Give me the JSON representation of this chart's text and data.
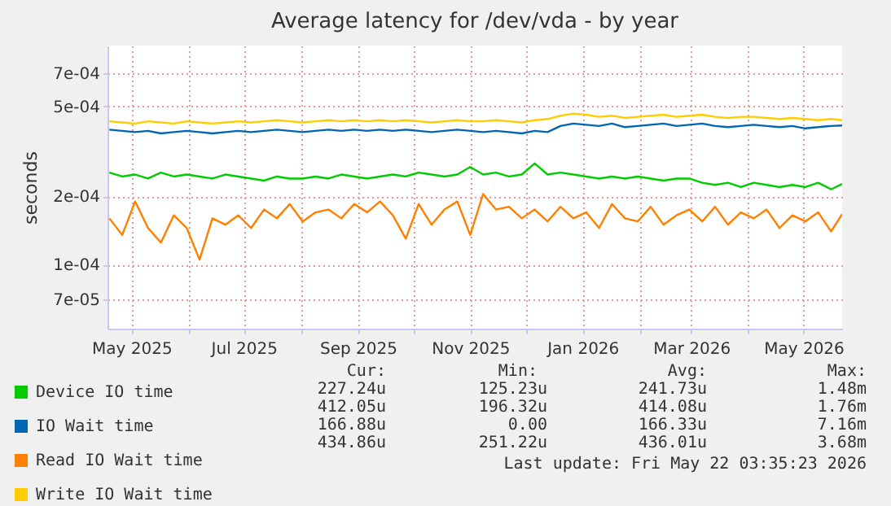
{
  "chart_data": {
    "type": "line",
    "title": "Average latency for /dev/vda - by year",
    "ylabel": "seconds",
    "log": "y",
    "grid": true,
    "legend": "bottom left",
    "marker": "none",
    "x": [
      "2025-04-19",
      "2025-04-26",
      "2025-05-03",
      "2025-05-10",
      "2025-05-17",
      "2025-05-24",
      "2025-05-31",
      "2025-06-07",
      "2025-06-14",
      "2025-06-21",
      "2025-06-28",
      "2025-07-05",
      "2025-07-12",
      "2025-07-19",
      "2025-07-26",
      "2025-08-02",
      "2025-08-09",
      "2025-08-16",
      "2025-08-23",
      "2025-08-30",
      "2025-09-06",
      "2025-09-13",
      "2025-09-20",
      "2025-09-27",
      "2025-10-04",
      "2025-10-11",
      "2025-10-18",
      "2025-10-25",
      "2025-11-01",
      "2025-11-08",
      "2025-11-15",
      "2025-11-22",
      "2025-11-29",
      "2025-12-06",
      "2025-12-13",
      "2025-12-20",
      "2025-12-27",
      "2026-01-03",
      "2026-01-10",
      "2026-01-17",
      "2026-01-24",
      "2026-01-31",
      "2026-02-07",
      "2026-02-14",
      "2026-02-21",
      "2026-02-28",
      "2026-03-07",
      "2026-03-14",
      "2026-03-21",
      "2026-03-28",
      "2026-04-04",
      "2026-04-11",
      "2026-04-18",
      "2026-04-25",
      "2026-05-02",
      "2026-05-09",
      "2026-05-16",
      "2026-05-22"
    ],
    "xlim": [
      "2025-04-18",
      "2026-05-22"
    ],
    "xticks": [
      {
        "value": "2025-05-01",
        "label": "May 2025"
      },
      {
        "value": "2025-06-01",
        "label": null
      },
      {
        "value": "2025-07-01",
        "label": "Jul 2025"
      },
      {
        "value": "2025-08-01",
        "label": null
      },
      {
        "value": "2025-09-01",
        "label": "Sep 2025"
      },
      {
        "value": "2025-10-01",
        "label": null
      },
      {
        "value": "2025-11-01",
        "label": "Nov 2025"
      },
      {
        "value": "2025-12-01",
        "label": null
      },
      {
        "value": "2026-01-01",
        "label": "Jan 2026"
      },
      {
        "value": "2026-02-01",
        "label": null
      },
      {
        "value": "2026-03-01",
        "label": "Mar 2026"
      },
      {
        "value": "2026-04-01",
        "label": null
      },
      {
        "value": "2026-05-01",
        "label": "May 2026"
      }
    ],
    "ylim": [
      5.2e-05,
      0.00093
    ],
    "yticks": [
      {
        "value": 7e-05,
        "label": "7e-05"
      },
      {
        "value": 0.0001,
        "label": "1e-04"
      },
      {
        "value": 0.0002,
        "label": "2e-04"
      },
      {
        "value": 0.0005,
        "label": "5e-04"
      },
      {
        "value": 0.0007,
        "label": "7e-04"
      }
    ],
    "series": [
      {
        "name": "Device IO time",
        "color": "#00cc00",
        "values": [
          0.000255,
          0.000245,
          0.00025,
          0.00024,
          0.000255,
          0.000245,
          0.00025,
          0.000245,
          0.00024,
          0.00025,
          0.000245,
          0.00024,
          0.000235,
          0.000245,
          0.00024,
          0.00024,
          0.000245,
          0.00024,
          0.00025,
          0.000245,
          0.00024,
          0.000245,
          0.00025,
          0.000245,
          0.000255,
          0.00025,
          0.000245,
          0.00025,
          0.00027,
          0.00025,
          0.000255,
          0.000245,
          0.00025,
          0.00028,
          0.00025,
          0.000255,
          0.00025,
          0.000245,
          0.00024,
          0.000245,
          0.00024,
          0.000245,
          0.00024,
          0.000235,
          0.00024,
          0.00024,
          0.00023,
          0.000225,
          0.00023,
          0.00022,
          0.00023,
          0.000225,
          0.00022,
          0.000225,
          0.00022,
          0.00023,
          0.000215,
          0.000227
        ]
      },
      {
        "name": "IO Wait time",
        "color": "#0066b3",
        "values": [
          0.000395,
          0.00039,
          0.000385,
          0.00039,
          0.00038,
          0.000385,
          0.00039,
          0.000385,
          0.00038,
          0.000385,
          0.00039,
          0.000385,
          0.00039,
          0.000395,
          0.00039,
          0.000385,
          0.00039,
          0.000395,
          0.00039,
          0.000395,
          0.00039,
          0.000395,
          0.00039,
          0.000395,
          0.00039,
          0.000385,
          0.00039,
          0.000395,
          0.00039,
          0.000385,
          0.00039,
          0.000385,
          0.00038,
          0.00039,
          0.000385,
          0.00041,
          0.00042,
          0.000415,
          0.00041,
          0.00042,
          0.000405,
          0.00041,
          0.000415,
          0.00042,
          0.00041,
          0.000415,
          0.00042,
          0.00041,
          0.000405,
          0.00041,
          0.000415,
          0.00041,
          0.000405,
          0.00041,
          0.0004,
          0.000405,
          0.00041,
          0.000412
        ]
      },
      {
        "name": "Read IO Wait time",
        "color": "#ff8000",
        "values": [
          0.00016,
          0.000135,
          0.00019,
          0.000145,
          0.000125,
          0.000165,
          0.000145,
          0.000105,
          0.00016,
          0.00015,
          0.000165,
          0.000145,
          0.000175,
          0.00016,
          0.000185,
          0.000155,
          0.00017,
          0.000175,
          0.00016,
          0.000185,
          0.00017,
          0.00019,
          0.000165,
          0.00013,
          0.000185,
          0.00015,
          0.000175,
          0.00019,
          0.000135,
          0.000205,
          0.000175,
          0.00018,
          0.00016,
          0.000175,
          0.000155,
          0.00018,
          0.00016,
          0.00017,
          0.000145,
          0.000185,
          0.00016,
          0.000155,
          0.00018,
          0.00015,
          0.000165,
          0.000175,
          0.000155,
          0.00018,
          0.00015,
          0.00017,
          0.00016,
          0.000175,
          0.000145,
          0.000165,
          0.000155,
          0.00017,
          0.00014,
          0.000167
        ]
      },
      {
        "name": "Write IO Wait time",
        "color": "#ffcc00",
        "values": [
          0.00043,
          0.000425,
          0.00042,
          0.00043,
          0.000425,
          0.00042,
          0.00043,
          0.000425,
          0.00042,
          0.000425,
          0.00043,
          0.000425,
          0.00043,
          0.000435,
          0.00043,
          0.000425,
          0.00043,
          0.000435,
          0.00043,
          0.000435,
          0.00043,
          0.000435,
          0.00043,
          0.000435,
          0.00043,
          0.000425,
          0.00043,
          0.000435,
          0.00043,
          0.00043,
          0.000435,
          0.00043,
          0.000425,
          0.000435,
          0.00044,
          0.000455,
          0.000465,
          0.00046,
          0.00045,
          0.000455,
          0.000445,
          0.00045,
          0.000455,
          0.00046,
          0.00045,
          0.000455,
          0.00046,
          0.00045,
          0.000445,
          0.00045,
          0.00045,
          0.000445,
          0.00044,
          0.000445,
          0.00044,
          0.000435,
          0.00044,
          0.000435
        ]
      }
    ],
    "annotations": [
      "Cur:",
      "Min:",
      "Avg:",
      "Max:",
      "227.24u",
      "125.23u",
      "241.73u",
      "1.48m",
      "412.05u",
      "196.32u",
      "414.08u",
      "1.76m",
      "166.88u",
      "0.00",
      "166.33u",
      "7.16m",
      "434.86u",
      "251.22u",
      "436.01u",
      "3.68m",
      "Last update: Fri May 22 03:35:23 2026"
    ]
  }
}
